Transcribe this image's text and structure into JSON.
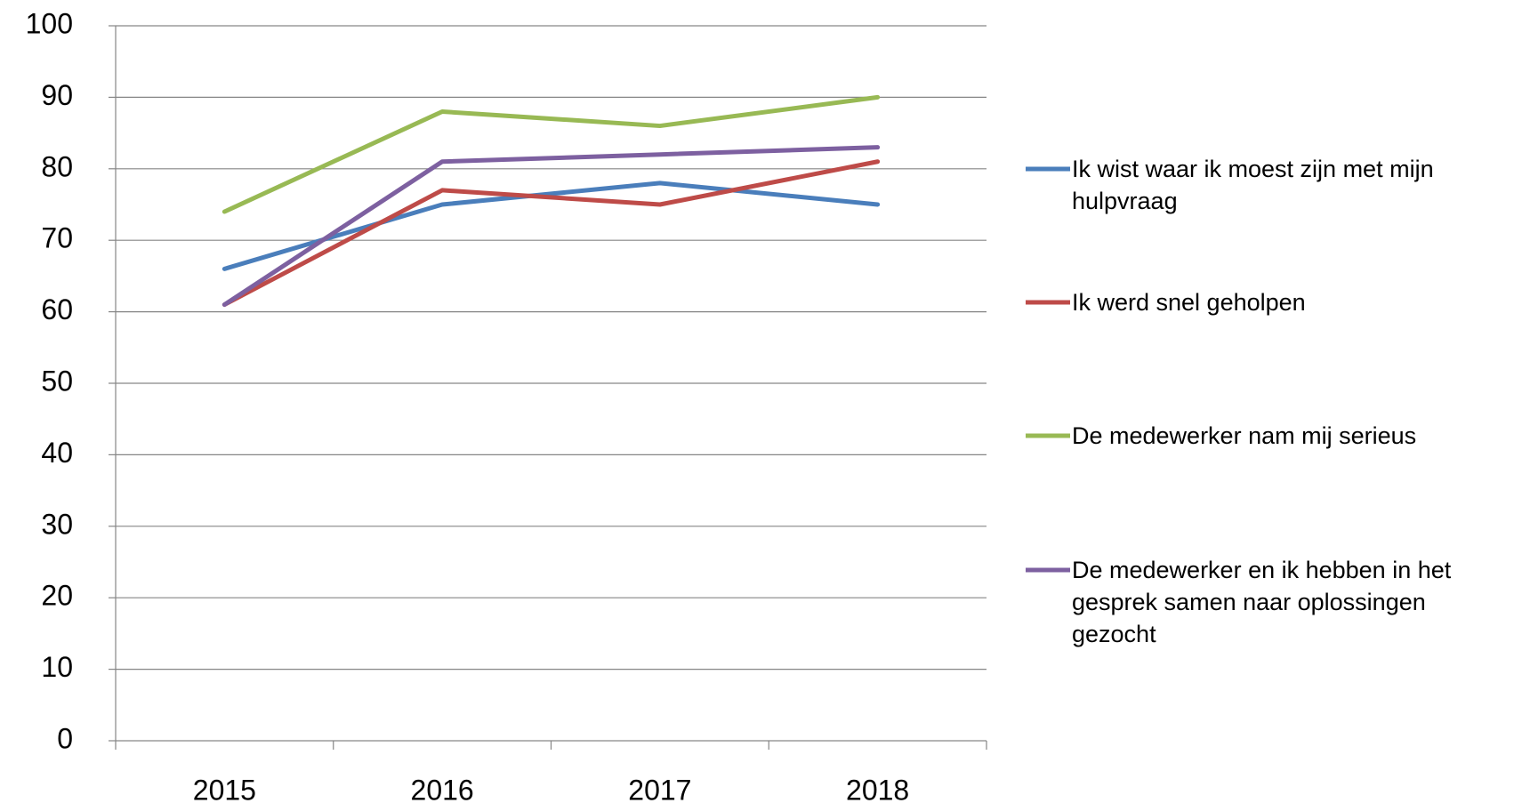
{
  "chart_data": {
    "type": "line",
    "categories": [
      "2015",
      "2016",
      "2017",
      "2018"
    ],
    "series": [
      {
        "name": "Ik wist waar ik moest zijn met mijn hulpvraag",
        "color": "#4a7ebb",
        "values": [
          66,
          75,
          78,
          75
        ]
      },
      {
        "name": "Ik werd snel geholpen",
        "color": "#be4b48",
        "values": [
          61,
          77,
          75,
          81
        ]
      },
      {
        "name": "De medewerker nam mij serieus",
        "color": "#98b954",
        "values": [
          74,
          88,
          86,
          90
        ]
      },
      {
        "name": "De medewerker en ik hebben in het gesprek samen naar oplossingen gezocht",
        "color": "#7d60a0",
        "values": [
          61,
          81,
          82,
          83
        ]
      }
    ],
    "ylim": [
      0,
      100
    ],
    "yticks": [
      0,
      10,
      20,
      30,
      40,
      50,
      60,
      70,
      80,
      90,
      100
    ],
    "grid": true,
    "legend": "right"
  }
}
